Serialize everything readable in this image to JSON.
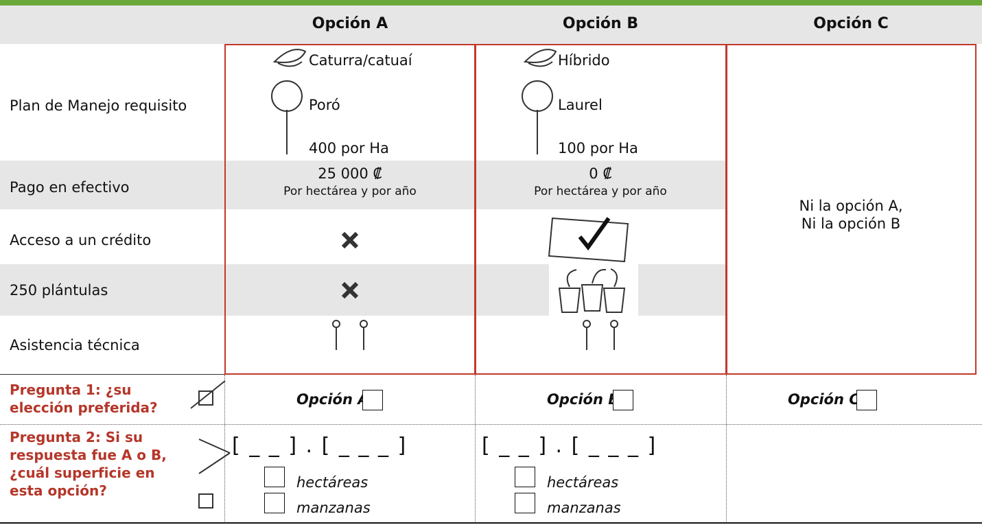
{
  "table": {
    "columns": [
      "Opción A",
      "Opción B",
      "Opción C"
    ],
    "row_labels": [
      "Plan de Manejo requisito",
      "Pago en efectivo",
      "Acceso a un crédito",
      "250 plántulas",
      "Asistencia técnica"
    ],
    "plan": {
      "a": [
        "Caturra/catuaí",
        "Poró",
        "400 por Ha"
      ],
      "b": [
        "Híbrido",
        "Laurel",
        "100 por Ha"
      ]
    },
    "payment": {
      "a": "25 000 ₡",
      "b": "0 ₡",
      "note": "Por hectárea y por año"
    },
    "option_c": [
      "Ni la opción A,",
      "Ni la opción B"
    ]
  },
  "questions": [
    {
      "text": "Pregunta 1: ¿su elección preferida?",
      "choices": [
        "Opción A",
        "Opción B",
        "Opción C"
      ]
    },
    {
      "text": "Pregunta 2: Si su respuesta fue A o B, ¿cuál superficie en esta opción?",
      "area_template": "[ _ _ ] . [ _  _  _ ]",
      "units": [
        "hectáreas",
        "manzanas"
      ]
    }
  ]
}
